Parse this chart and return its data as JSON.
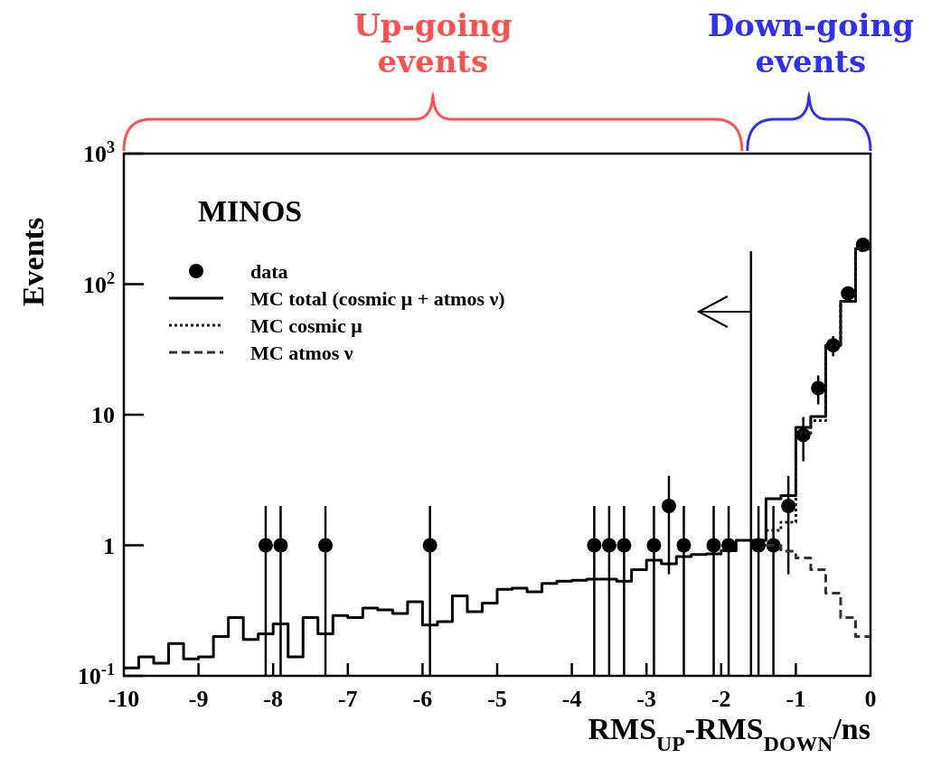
{
  "chart_data": {
    "type": "histogram",
    "title": null,
    "xlabel": "RMS$_{UP}$-RMS$_{DOWN}$/ns",
    "ylabel": "Events",
    "annotations": [
      "MINOS",
      "Up-going events",
      "Down-going events"
    ],
    "bins": [
      -10,
      -9.8,
      -9.6,
      -9.4,
      -9.2,
      -9,
      -8.8,
      -8.6,
      -8.4,
      -8.2,
      -8,
      -7.8,
      -7.6,
      -7.4,
      -7.2,
      -7,
      -6.8,
      -6.6,
      -6.4,
      -6.2,
      -6,
      -5.8,
      -5.6,
      -5.4,
      -5.2,
      -5,
      -4.8,
      -4.6,
      -4.4,
      -4.2,
      -4,
      -3.8,
      -3.6,
      -3.4,
      -3.2,
      -3,
      -2.8,
      -2.6,
      -2.4,
      -2.2,
      -2,
      -1.8,
      -1.6,
      -1.4,
      -1.2,
      -1,
      -0.8,
      -0.6,
      -0.4,
      -0.2,
      0
    ],
    "series": [
      {
        "name": "data",
        "type": "scatter",
        "color": "#000000",
        "marker": "circle",
        "x": [
          -8.1,
          -7.9,
          -7.3,
          -5.9,
          -3.7,
          -3.5,
          -3.3,
          -2.9,
          -2.7,
          -2.5,
          -2.1,
          -1.9,
          -1.5,
          -1.3,
          -1.1,
          -0.9,
          -0.7,
          -0.5,
          -0.3,
          -0.1
        ],
        "values": [
          1,
          1,
          1,
          1,
          1,
          1,
          1,
          1,
          2,
          1,
          1,
          1,
          1,
          1,
          2,
          7,
          16,
          34,
          85,
          200
        ],
        "errors": [
          [
            0.1,
            2
          ],
          [
            0.1,
            2
          ],
          [
            0.1,
            2
          ],
          [
            0.1,
            2
          ],
          [
            0.1,
            2
          ],
          [
            0.1,
            2
          ],
          [
            0.1,
            2
          ],
          [
            0.1,
            2
          ],
          [
            0.6,
            3.4
          ],
          [
            0.1,
            2
          ],
          [
            0.1,
            2
          ],
          [
            0.1,
            2
          ],
          [
            0.1,
            2
          ],
          [
            0.1,
            2
          ],
          [
            0.6,
            3.4
          ],
          2.6,
          4,
          6,
          null,
          14
        ]
      },
      {
        "name": "MC total (cosmic μ + atmos ν)",
        "color": "#000000",
        "line_style": "solid",
        "values": [
          0.115,
          0.14,
          0.125,
          0.177,
          0.135,
          0.14,
          0.2,
          0.28,
          0.19,
          0.21,
          0.25,
          0.14,
          0.28,
          0.21,
          0.29,
          0.28,
          0.33,
          0.32,
          0.3,
          0.37,
          0.245,
          0.26,
          0.41,
          0.31,
          0.36,
          0.46,
          0.47,
          0.44,
          0.51,
          0.53,
          0.54,
          0.55,
          0.55,
          0.53,
          0.65,
          0.77,
          0.72,
          0.82,
          0.85,
          0.86,
          0.91,
          1.09,
          1.09,
          2.27,
          2.4,
          8,
          9.7,
          34,
          74,
          187
        ]
      },
      {
        "name": "MC cosmic μ",
        "type": "step",
        "color": "#1a1a1a",
        "line_style": "dotted",
        "x": [
          -1.4,
          -1.2,
          -1,
          -0.8,
          -0.6,
          -0.4,
          -0.2,
          0
        ],
        "values": [
          1.3,
          1.5,
          7.2,
          9,
          34,
          74,
          187,
          187
        ]
      },
      {
        "name": "MC atmos ν",
        "type": "step",
        "color": "#333333",
        "line_style": "dashed",
        "x": [
          -1.4,
          -1.2,
          -1,
          -0.8,
          -0.6,
          -0.4,
          -0.2,
          0
        ],
        "values": [
          1.0,
          0.9,
          0.8,
          0.65,
          0.43,
          0.28,
          0.2,
          0.2
        ]
      }
    ],
    "ref_lines": [
      {
        "axis": "x",
        "value": -1.6
      }
    ],
    "xlim": [
      -10,
      0
    ],
    "xticks": [
      -10,
      -9,
      -8,
      -7,
      -6,
      -5,
      -4,
      -3,
      -2,
      -1,
      0
    ],
    "ylim": [
      0.1,
      1000
    ],
    "yticks": [
      {
        "value": 0.1,
        "label": "10$^{-1}$"
      },
      1,
      10,
      {
        "value": 100,
        "label": "10$^{2}$"
      },
      {
        "value": 1000,
        "label": "10$^{3}$"
      }
    ],
    "log": "y",
    "grid": false,
    "legend": "top left"
  }
}
